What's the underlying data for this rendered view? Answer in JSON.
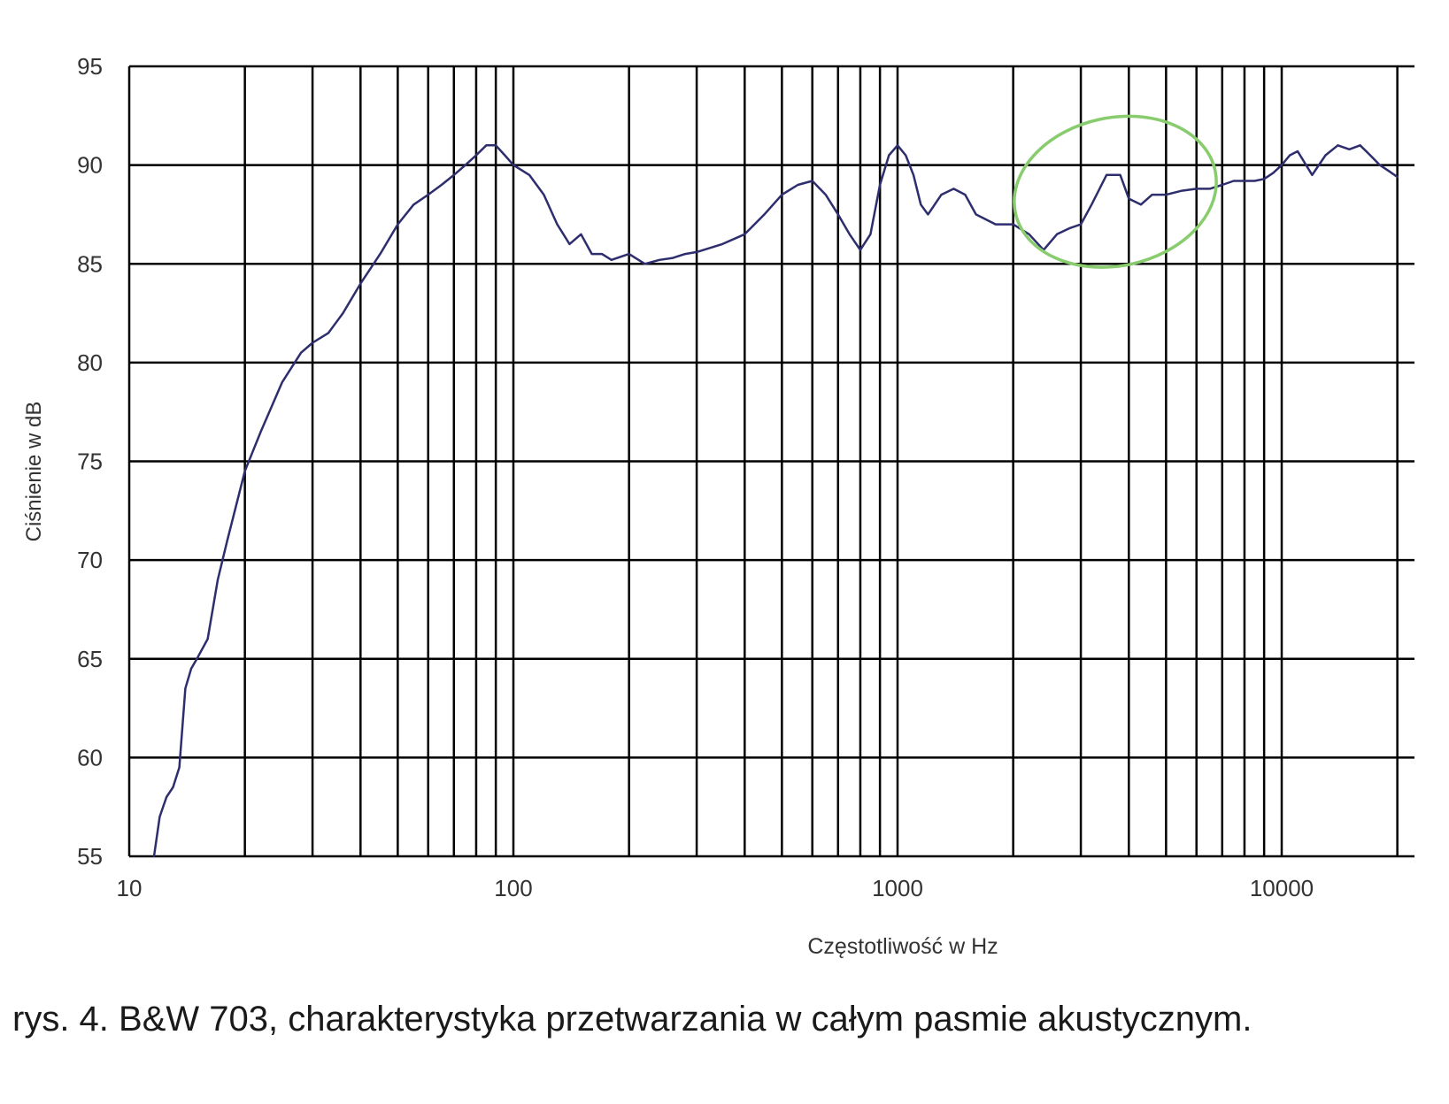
{
  "caption": "rys. 4. B&W 703, charakterystyka przetwarzania w całym pasmie akustycznym.",
  "chart_data": {
    "type": "line",
    "title": "",
    "xlabel": "Częstotliwość w Hz",
    "ylabel": "Ciśnienie w dB",
    "x_scale": "log",
    "xlim": [
      10,
      20000
    ],
    "ylim": [
      55,
      95
    ],
    "x_ticks": [
      10,
      100,
      1000,
      10000
    ],
    "x_tick_labels": [
      "10",
      "100",
      "1000",
      "10000"
    ],
    "y_ticks": [
      55,
      60,
      65,
      70,
      75,
      80,
      85,
      90,
      95
    ],
    "y_tick_labels": [
      "55",
      "60",
      "65",
      "70",
      "75",
      "80",
      "85",
      "90",
      "95"
    ],
    "grid": true,
    "legend": "none",
    "series": [
      {
        "color": "#2e2e6e",
        "x": [
          11.6,
          12,
          12.5,
          13,
          13.5,
          14,
          14.5,
          15,
          16,
          17,
          18,
          20,
          22,
          25,
          28,
          30,
          33,
          36,
          40,
          45,
          50,
          55,
          60,
          65,
          70,
          75,
          80,
          85,
          90,
          95,
          100,
          110,
          120,
          130,
          140,
          150,
          160,
          170,
          180,
          200,
          220,
          240,
          260,
          280,
          300,
          350,
          400,
          450,
          500,
          550,
          600,
          650,
          700,
          750,
          800,
          850,
          900,
          950,
          1000,
          1050,
          1100,
          1150,
          1200,
          1300,
          1400,
          1500,
          1600,
          1800,
          2000,
          2200,
          2400,
          2600,
          2800,
          3000,
          3200,
          3500,
          3800,
          4000,
          4300,
          4600,
          5000,
          5500,
          6000,
          6500,
          7000,
          7500,
          8000,
          8500,
          9000,
          9500,
          10000,
          10500,
          11000,
          12000,
          13000,
          14000,
          15000,
          16000,
          17000,
          18000,
          19000,
          20000
        ],
        "y": [
          55,
          57,
          58,
          58.5,
          59.5,
          63.5,
          64.5,
          65,
          66,
          69,
          71,
          74.5,
          76.5,
          79,
          80.5,
          81,
          81.5,
          82.5,
          84,
          85.5,
          87,
          88,
          88.5,
          89,
          89.5,
          90,
          90.5,
          91,
          91,
          90.5,
          90,
          89.5,
          88.5,
          87,
          86,
          86.5,
          85.5,
          85.5,
          85.2,
          85.5,
          85,
          85.2,
          85.3,
          85.5,
          85.6,
          86,
          86.5,
          87.5,
          88.5,
          89,
          89.2,
          88.5,
          87.5,
          86.5,
          85.7,
          86.5,
          89,
          90.5,
          91,
          90.5,
          89.5,
          88,
          87.5,
          88.5,
          88.8,
          88.5,
          87.5,
          87,
          87,
          86.5,
          85.7,
          86.5,
          86.8,
          87,
          88,
          89.5,
          89.5,
          88.3,
          88,
          88.5,
          88.5,
          88.7,
          88.8,
          88.8,
          89,
          89.2,
          89.2,
          89.2,
          89.3,
          89.6,
          90,
          90.5,
          90.7,
          89.5,
          90.5,
          91,
          90.8,
          91,
          90.5,
          90,
          89.7,
          89.4
        ]
      }
    ],
    "annotations": [
      {
        "shape": "ellipse",
        "color": "#88cc6e",
        "x_range": [
          2000,
          6800
        ],
        "y_range": [
          84.9,
          92.4
        ]
      }
    ]
  }
}
